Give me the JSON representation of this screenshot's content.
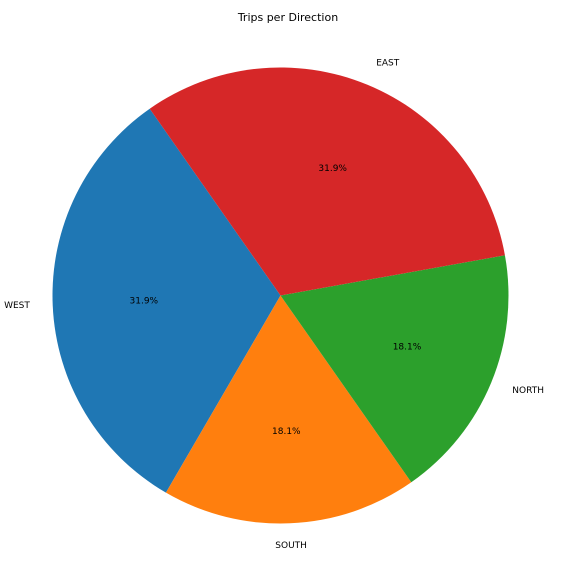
{
  "chart_data": {
    "type": "pie",
    "title": "Trips per Direction",
    "categories": [
      "WEST",
      "SOUTH",
      "NORTH",
      "EAST"
    ],
    "values": [
      31.9,
      18.1,
      18.1,
      31.9
    ],
    "percent_labels": [
      "31.9%",
      "18.1%",
      "18.1%",
      "31.9%"
    ],
    "colors": [
      "#1f77b4",
      "#ff7f0e",
      "#2ca02c",
      "#d62728"
    ],
    "start_angle_deg": 125,
    "direction": "counterclockwise",
    "legend": "none"
  }
}
